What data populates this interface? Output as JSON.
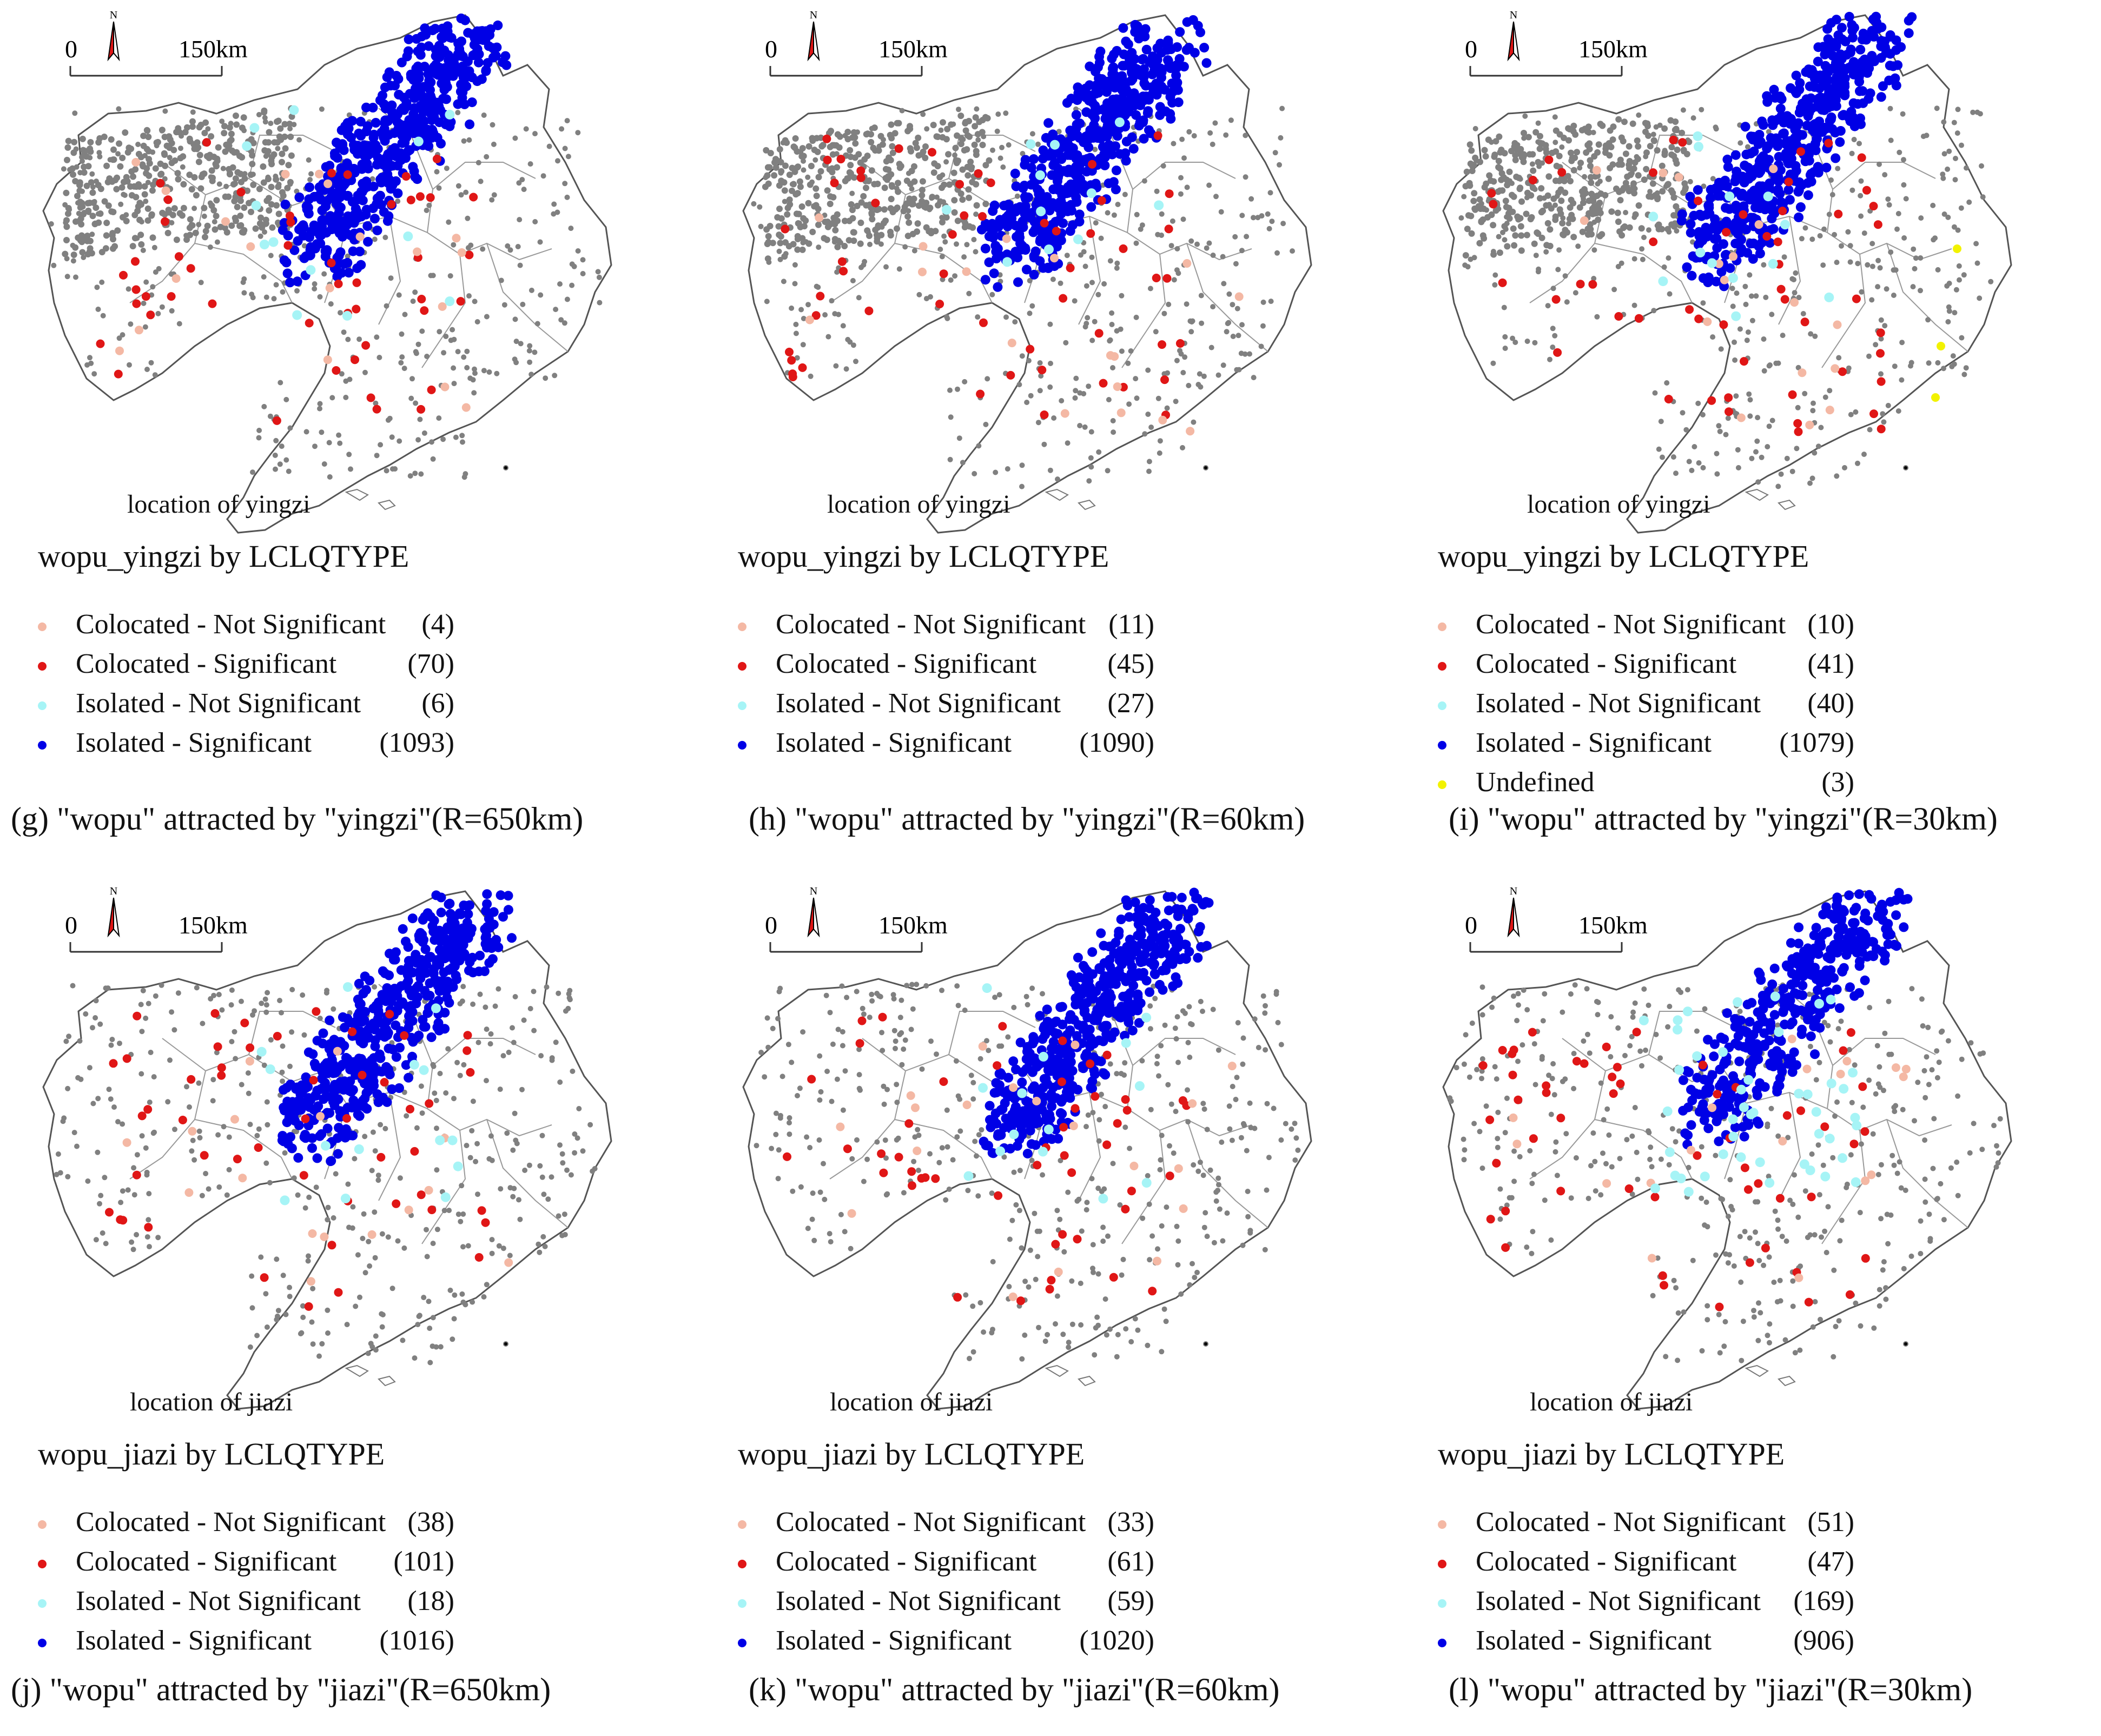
{
  "colors": {
    "colocated_not_significant": "#f4b8a4",
    "colocated_significant": "#e01616",
    "isolated_not_significant": "#a6f4f6",
    "isolated_significant": "#0000e6",
    "undefined": "#f2f200",
    "background_points": "#808080",
    "boundary": "#666666"
  },
  "scale_bar": {
    "start": "0",
    "end": "150km"
  },
  "north_arrow": {
    "label": "N",
    "icon": "north-arrow-icon"
  },
  "panels": [
    {
      "id": "g",
      "location_label": "location of yingzi",
      "layer_title": "wopu_yingzi by LCLQTYPE",
      "legend": [
        {
          "label": "Colocated - Not Significant",
          "count": "(4)",
          "type": "colocated_not_significant"
        },
        {
          "label": "Colocated - Significant",
          "count": "(70)",
          "type": "colocated_significant"
        },
        {
          "label": "Isolated - Not Significant",
          "count": "(6)",
          "type": "isolated_not_significant"
        },
        {
          "label": "Isolated - Significant",
          "count": "(1093)",
          "type": "isolated_significant"
        }
      ],
      "caption": "(g) \"wopu\" attracted by \"yingzi\"(R=650km)"
    },
    {
      "id": "h",
      "location_label": "location of yingzi",
      "layer_title": "wopu_yingzi by LCLQTYPE",
      "legend": [
        {
          "label": "Colocated - Not Significant",
          "count": "(11)",
          "type": "colocated_not_significant"
        },
        {
          "label": "Colocated - Significant",
          "count": "(45)",
          "type": "colocated_significant"
        },
        {
          "label": "Isolated - Not Significant",
          "count": "(27)",
          "type": "isolated_not_significant"
        },
        {
          "label": "Isolated - Significant",
          "count": "(1090)",
          "type": "isolated_significant"
        }
      ],
      "caption": "(h) \"wopu\" attracted by \"yingzi\"(R=60km)"
    },
    {
      "id": "i",
      "location_label": "location of yingzi",
      "layer_title": "wopu_yingzi by LCLQTYPE",
      "legend": [
        {
          "label": "Colocated - Not Significant",
          "count": "(10)",
          "type": "colocated_not_significant"
        },
        {
          "label": "Colocated - Significant",
          "count": "(41)",
          "type": "colocated_significant"
        },
        {
          "label": "Isolated - Not Significant",
          "count": "(40)",
          "type": "isolated_not_significant"
        },
        {
          "label": "Isolated - Significant",
          "count": "(1079)",
          "type": "isolated_significant"
        },
        {
          "label": "Undefined",
          "count": "(3)",
          "type": "undefined"
        }
      ],
      "caption": "(i) \"wopu\" attracted by \"yingzi\"(R=30km)"
    },
    {
      "id": "j",
      "location_label": "location of jiazi",
      "layer_title": "wopu_jiazi by LCLQTYPE",
      "legend": [
        {
          "label": "Colocated - Not Significant",
          "count": "(38)",
          "type": "colocated_not_significant"
        },
        {
          "label": "Colocated - Significant",
          "count": "(101)",
          "type": "colocated_significant"
        },
        {
          "label": "Isolated - Not Significant",
          "count": "(18)",
          "type": "isolated_not_significant"
        },
        {
          "label": "Isolated - Significant",
          "count": "(1016)",
          "type": "isolated_significant"
        }
      ],
      "caption": "(j) \"wopu\" attracted by \"jiazi\"(R=650km)"
    },
    {
      "id": "k",
      "location_label": "location of jiazi",
      "layer_title": "wopu_jiazi by LCLQTYPE",
      "legend": [
        {
          "label": "Colocated - Not Significant",
          "count": "(33)",
          "type": "colocated_not_significant"
        },
        {
          "label": "Colocated - Significant",
          "count": "(61)",
          "type": "colocated_significant"
        },
        {
          "label": "Isolated - Not Significant",
          "count": "(59)",
          "type": "isolated_not_significant"
        },
        {
          "label": "Isolated - Significant",
          "count": "(1020)",
          "type": "isolated_significant"
        }
      ],
      "caption": "(k) \"wopu\" attracted by \"jiazi\"(R=60km)"
    },
    {
      "id": "l",
      "location_label": "location of jiazi",
      "layer_title": "wopu_jiazi by LCLQTYPE",
      "legend": [
        {
          "label": "Colocated - Not Significant",
          "count": "(51)",
          "type": "colocated_not_significant"
        },
        {
          "label": "Colocated - Significant",
          "count": "(47)",
          "type": "colocated_significant"
        },
        {
          "label": "Isolated - Not Significant",
          "count": "(169)",
          "type": "isolated_not_significant"
        },
        {
          "label": "Isolated - Significant",
          "count": "(906)",
          "type": "isolated_significant"
        }
      ],
      "caption": "(l) \"wopu\" attracted by \"jiazi\"(R=30km)"
    }
  ]
}
